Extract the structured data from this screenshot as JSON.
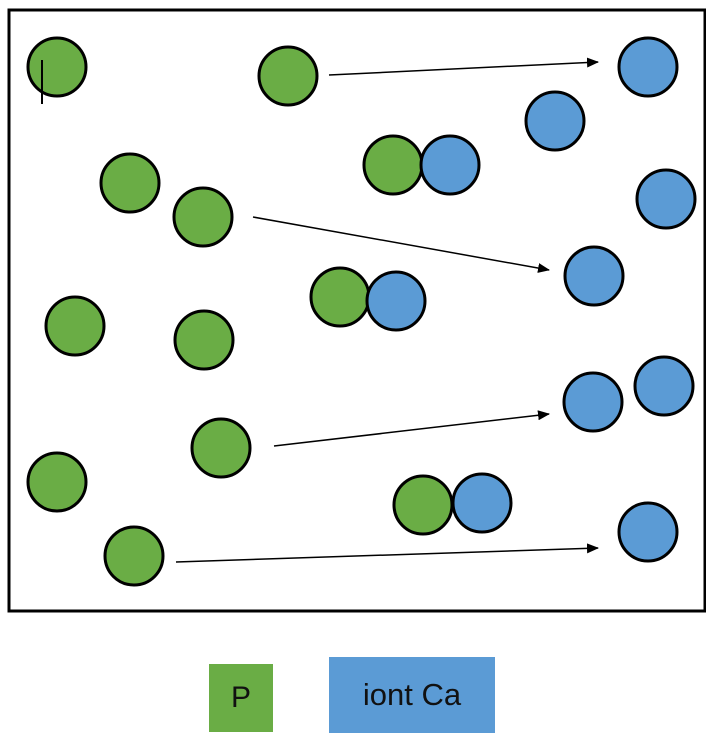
{
  "colors": {
    "green": "#6aad45",
    "blue": "#5b9bd5",
    "outline": "#000000",
    "background": "#ffffff"
  },
  "diagram": {
    "particles": [
      {
        "name": "green-particle",
        "type": "P"
      },
      {
        "name": "green-particle",
        "type": "P"
      },
      {
        "name": "green-particle",
        "type": "P"
      },
      {
        "name": "green-particle",
        "type": "P"
      },
      {
        "name": "green-particle",
        "type": "P"
      },
      {
        "name": "green-particle",
        "type": "P"
      },
      {
        "name": "green-particle",
        "type": "P"
      },
      {
        "name": "green-particle",
        "type": "P"
      },
      {
        "name": "green-particle",
        "type": "P"
      },
      {
        "name": "green-particle",
        "type": "P"
      },
      {
        "name": "blue-particle",
        "type": "Ca"
      },
      {
        "name": "blue-particle",
        "type": "Ca"
      },
      {
        "name": "blue-particle",
        "type": "Ca"
      },
      {
        "name": "blue-particle",
        "type": "Ca"
      },
      {
        "name": "blue-particle",
        "type": "Ca"
      },
      {
        "name": "blue-particle",
        "type": "Ca"
      },
      {
        "name": "blue-particle",
        "type": "Ca"
      }
    ],
    "pairs": [
      {
        "name": "bound-pair",
        "types": [
          "P",
          "Ca"
        ]
      },
      {
        "name": "bound-pair",
        "types": [
          "P",
          "Ca"
        ]
      },
      {
        "name": "bound-pair",
        "types": [
          "P",
          "Ca"
        ]
      }
    ],
    "arrows": 4
  },
  "legend": {
    "p_label": "P",
    "ca_label": "iont Ca"
  }
}
